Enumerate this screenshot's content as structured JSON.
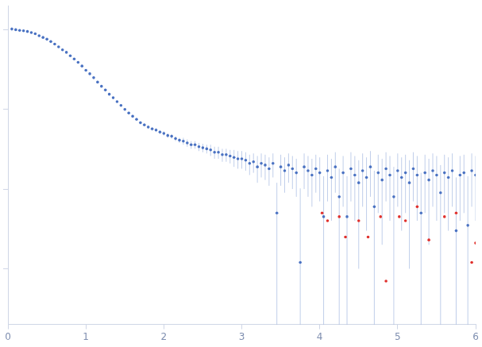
{
  "chart_data": {
    "type": "scatter",
    "log": "y",
    "grid": false,
    "tick_labels": "x",
    "xlim": [
      0,
      6
    ],
    "xticks": [
      0,
      1,
      2,
      3,
      4,
      5,
      6
    ],
    "ylim": [
      0.0002,
      2
    ],
    "yticks": [
      0.001,
      0.01,
      0.1,
      1
    ],
    "series": [
      {
        "color": "#4a72c2",
        "marker": "circle",
        "x": [
          0.05,
          0.1,
          0.15,
          0.2,
          0.25,
          0.3,
          0.35,
          0.4,
          0.45,
          0.5,
          0.55,
          0.6,
          0.65,
          0.7,
          0.75,
          0.8,
          0.85,
          0.9,
          0.95,
          1.0,
          1.05,
          1.1,
          1.15,
          1.2,
          1.25,
          1.3,
          1.35,
          1.4,
          1.45,
          1.5,
          1.55,
          1.6,
          1.65,
          1.7,
          1.75,
          1.8,
          1.85,
          1.9,
          1.95,
          2.0,
          2.05,
          2.1,
          2.15,
          2.2,
          2.25,
          2.3,
          2.35,
          2.4,
          2.45,
          2.5,
          2.55,
          2.6,
          2.65,
          2.7,
          2.75,
          2.8,
          2.85,
          2.9,
          2.95,
          3.0,
          3.05,
          3.1,
          3.15,
          3.2,
          3.25,
          3.3,
          3.35,
          3.4,
          3.45,
          3.5,
          3.55,
          3.6,
          3.65,
          3.7,
          3.75,
          3.8,
          3.85,
          3.9,
          3.95,
          4.0,
          4.05,
          4.1,
          4.15,
          4.2,
          4.25,
          4.3,
          4.35,
          4.4,
          4.45,
          4.5,
          4.55,
          4.6,
          4.65,
          4.7,
          4.75,
          4.8,
          4.85,
          4.9,
          4.95,
          5.0,
          5.05,
          5.1,
          5.15,
          5.2,
          5.25,
          5.3,
          5.35,
          5.4,
          5.45,
          5.5,
          5.55,
          5.6,
          5.65,
          5.7,
          5.75,
          5.8,
          5.85,
          5.9,
          5.95,
          6.0
        ],
        "values": [
          1.02,
          1.0,
          0.98,
          0.97,
          0.95,
          0.92,
          0.89,
          0.84,
          0.8,
          0.76,
          0.71,
          0.66,
          0.61,
          0.56,
          0.52,
          0.47,
          0.43,
          0.39,
          0.35,
          0.31,
          0.28,
          0.25,
          0.22,
          0.195,
          0.175,
          0.155,
          0.14,
          0.125,
          0.112,
          0.1,
          0.09,
          0.082,
          0.075,
          0.068,
          0.064,
          0.06,
          0.057,
          0.055,
          0.052,
          0.05,
          0.047,
          0.046,
          0.043,
          0.041,
          0.04,
          0.038,
          0.036,
          0.036,
          0.034,
          0.033,
          0.032,
          0.031,
          0.029,
          0.029,
          0.027,
          0.027,
          0.026,
          0.025,
          0.024,
          0.024,
          0.023,
          0.021,
          0.022,
          0.019,
          0.021,
          0.02,
          0.018,
          0.021,
          0.005,
          0.019,
          0.017,
          0.02,
          0.018,
          0.016,
          0.0012,
          0.019,
          0.017,
          0.015,
          0.018,
          0.016,
          0.0045,
          0.017,
          0.014,
          0.019,
          0.008,
          0.016,
          0.0045,
          0.018,
          0.015,
          0.012,
          0.017,
          0.014,
          0.019,
          0.006,
          0.016,
          0.013,
          0.018,
          0.015,
          0.008,
          0.017,
          0.014,
          0.016,
          0.012,
          0.018,
          0.015,
          0.005,
          0.016,
          0.013,
          0.017,
          0.015,
          0.009,
          0.016,
          0.014,
          0.017,
          0.003,
          0.015,
          0.016,
          0.0035,
          0.017,
          0.015
        ],
        "errors": [
          0.06,
          0.02,
          0.015,
          0.012,
          0.011,
          0.01,
          0.009,
          0.009,
          0.008,
          0.008,
          0.007,
          0.007,
          0.006,
          0.006,
          0.006,
          0.005,
          0.005,
          0.005,
          0.004,
          0.004,
          0.004,
          0.004,
          0.003,
          0.003,
          0.003,
          0.003,
          0.003,
          0.003,
          0.003,
          0.003,
          0.003,
          0.003,
          0.003,
          0.003,
          0.003,
          0.003,
          0.003,
          0.003,
          0.003,
          0.003,
          0.003,
          0.003,
          0.003,
          0.003,
          0.004,
          0.004,
          0.004,
          0.004,
          0.004,
          0.004,
          0.004,
          0.005,
          0.005,
          0.005,
          0.005,
          0.005,
          0.005,
          0.006,
          0.006,
          0.006,
          0.006,
          0.006,
          0.006,
          0.007,
          0.007,
          0.007,
          0.007,
          0.007,
          0.007,
          0.008,
          0.008,
          0.008,
          0.008,
          0.008,
          0.009,
          0.009,
          0.009,
          0.009,
          0.009,
          0.009,
          0.01,
          0.01,
          0.01,
          0.01,
          0.01,
          0.01,
          0.01,
          0.011,
          0.011,
          0.011,
          0.011,
          0.011,
          0.011,
          0.011,
          0.011,
          0.011,
          0.011,
          0.011,
          0.011,
          0.011,
          0.011,
          0.011,
          0.011,
          0.011,
          0.011,
          0.011,
          0.011,
          0.011,
          0.011,
          0.011,
          0.011,
          0.011,
          0.011,
          0.011,
          0.011,
          0.011,
          0.011,
          0.011,
          0.011,
          0.011
        ]
      },
      {
        "color": "#e0302c",
        "marker": "circle",
        "x": [
          4.03,
          4.1,
          4.25,
          4.33,
          4.5,
          4.62,
          4.78,
          4.85,
          5.02,
          5.1,
          5.25,
          5.4,
          5.6,
          5.75,
          5.95,
          6.0
        ],
        "values": [
          0.005,
          0.004,
          0.0045,
          0.0025,
          0.004,
          0.0025,
          0.0045,
          0.0007,
          0.0045,
          0.004,
          0.006,
          0.0023,
          0.0045,
          0.005,
          0.0012,
          0.0021
        ]
      }
    ]
  }
}
